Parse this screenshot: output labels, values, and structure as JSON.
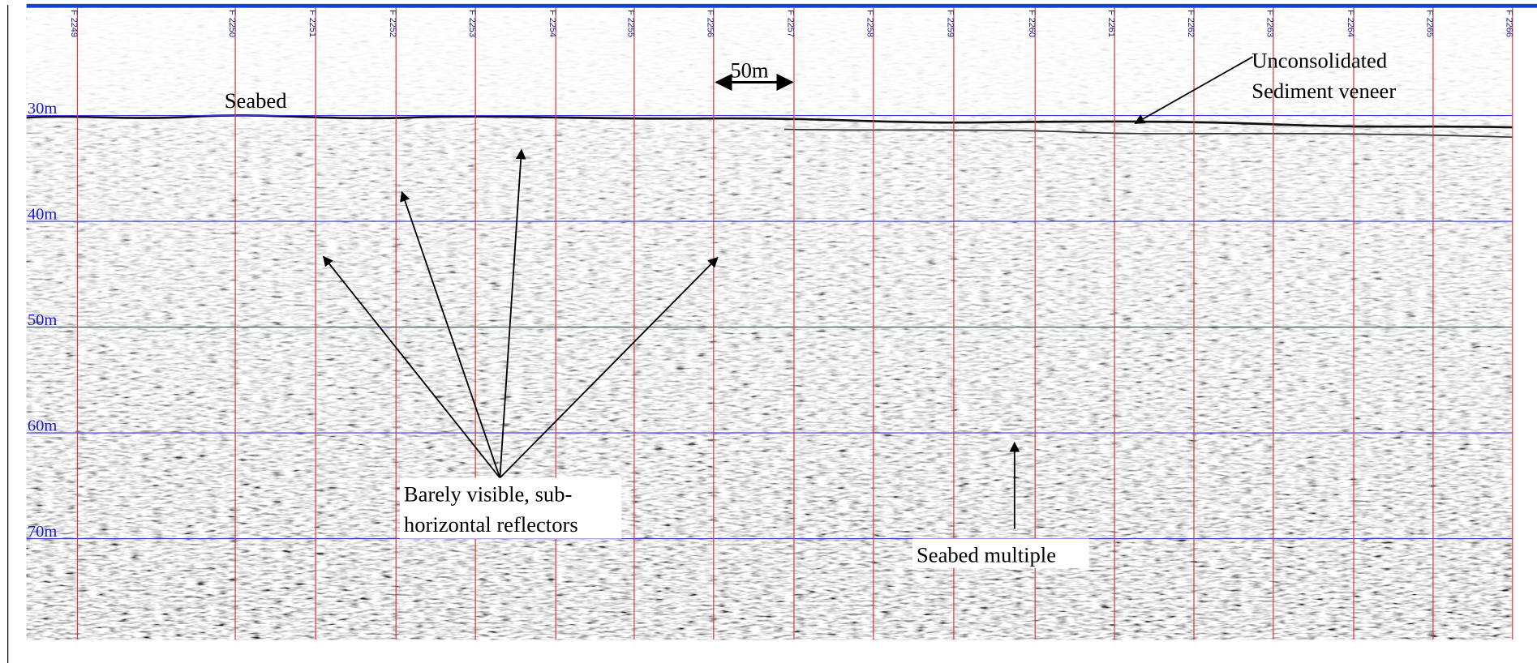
{
  "depth_labels": [
    "30m",
    "40m",
    "50m",
    "60m",
    "70m"
  ],
  "fix_labels": [
    "F 2249",
    "F 2250",
    "F 2251",
    "F 2252",
    "F 2253",
    "F 2254",
    "F 2255",
    "F 2256",
    "F 2257",
    "F 2258",
    "F 2259",
    "F 2260",
    "F 2261",
    "F 2262",
    "F 2263",
    "F 2264",
    "F 2265",
    "F 2266"
  ],
  "annotations": {
    "seabed": "Seabed",
    "scale": "50m",
    "veneer": [
      "Unconsolidated",
      "Sediment veneer"
    ],
    "reflectors": [
      "Barely visible, sub-",
      "horizontal reflectors"
    ],
    "multiple": "Seabed multiple"
  }
}
